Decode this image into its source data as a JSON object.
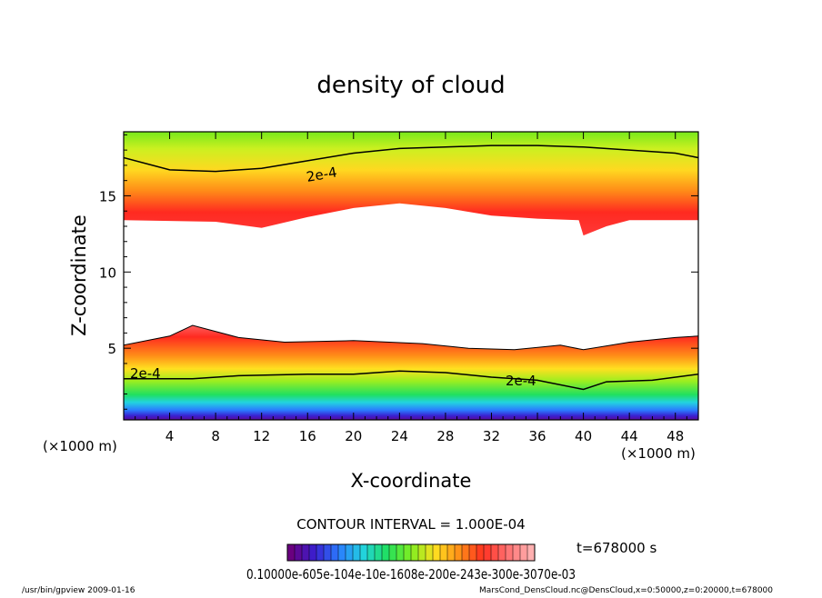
{
  "chart_data": {
    "type": "heatmap",
    "title": "density of cloud",
    "xlabel": "X-coordinate",
    "ylabel": "Z-coordinate",
    "x_unit": "(×1000 m)",
    "y_unit": "(×1000 m)",
    "xlim": [
      0,
      50
    ],
    "ylim": [
      0.3,
      19.2
    ],
    "x_ticks": [
      "4",
      "8",
      "12",
      "16",
      "20",
      "24",
      "28",
      "32",
      "36",
      "40",
      "44",
      "48"
    ],
    "y_ticks": [
      "5",
      "10",
      "15"
    ],
    "contour_label": "2e-4",
    "contour_interval": "CONTOUR INTERVAL = 1.000E-04",
    "colorbar_labels": "0.10000e-605e-104e-10e-1608e-200e-243e-300e-3070e-03",
    "time_label": "t=678000 s",
    "colormap": [
      "#6a0080",
      "#3a1fd0",
      "#2a7cff",
      "#22d3e0",
      "#20e060",
      "#80ee20",
      "#ffe020",
      "#ff9018",
      "#ff3020",
      "#ff7070",
      "#ffb0b0"
    ],
    "upper_band": {
      "contour_2e-4_z": [
        [
          0,
          17.5
        ],
        [
          4,
          16.7
        ],
        [
          8,
          16.6
        ],
        [
          12,
          16.8
        ],
        [
          16,
          17.3
        ],
        [
          20,
          17.8
        ],
        [
          24,
          18.1
        ],
        [
          28,
          18.2
        ],
        [
          32,
          18.3
        ],
        [
          36,
          18.3
        ],
        [
          40,
          18.2
        ],
        [
          44,
          18.0
        ],
        [
          48,
          17.8
        ],
        [
          50,
          17.5
        ]
      ],
      "lower_edge_z": [
        [
          0,
          13.4
        ],
        [
          8,
          13.3
        ],
        [
          12,
          12.9
        ],
        [
          16,
          13.6
        ],
        [
          20,
          14.2
        ],
        [
          24,
          14.5
        ],
        [
          28,
          14.2
        ],
        [
          32,
          13.7
        ],
        [
          36,
          13.5
        ],
        [
          39.6,
          13.4
        ],
        [
          40,
          12.4
        ],
        [
          42,
          13.0
        ],
        [
          44,
          13.4
        ],
        [
          50,
          13.4
        ]
      ]
    },
    "lower_band": {
      "upper_edge_z": [
        [
          0,
          5.2
        ],
        [
          4,
          5.8
        ],
        [
          6,
          6.5
        ],
        [
          10,
          5.7
        ],
        [
          14,
          5.4
        ],
        [
          20,
          5.5
        ],
        [
          26,
          5.3
        ],
        [
          30,
          5.0
        ],
        [
          34,
          4.9
        ],
        [
          38,
          5.2
        ],
        [
          40,
          4.9
        ],
        [
          44,
          5.4
        ],
        [
          48,
          5.7
        ],
        [
          50,
          5.8
        ]
      ],
      "contour_2e-4_z": [
        [
          0,
          3.0
        ],
        [
          6,
          3.0
        ],
        [
          10,
          3.2
        ],
        [
          16,
          3.3
        ],
        [
          20,
          3.3
        ],
        [
          24,
          3.5
        ],
        [
          28,
          3.4
        ],
        [
          32,
          3.1
        ],
        [
          36,
          2.9
        ],
        [
          40,
          2.3
        ],
        [
          42,
          2.8
        ],
        [
          46,
          2.9
        ],
        [
          50,
          3.3
        ]
      ]
    }
  },
  "footer": {
    "left": "/usr/bin/gpview   2009-01-16",
    "right": "MarsCond_DensCloud.nc@DensCloud,x=0:50000,z=0:20000,t=678000"
  }
}
